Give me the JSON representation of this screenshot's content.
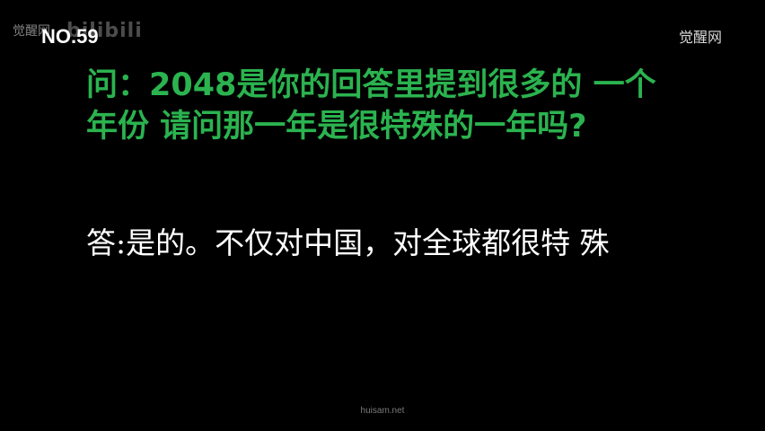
{
  "watermark": {
    "site_left": "觉醒网",
    "logo": "bilibili",
    "episode": "NO.59",
    "site_right": "觉醒网"
  },
  "question": {
    "text": "问：2048是你的回答里提到很多的 一个年份 请问那一年是很特殊的一年吗?",
    "color": "#2bb34f"
  },
  "answer": {
    "text": "答:是的。不仅对中国，对全球都很特 殊",
    "color": "#ffffff"
  },
  "footer": {
    "source": "huisam.net"
  }
}
